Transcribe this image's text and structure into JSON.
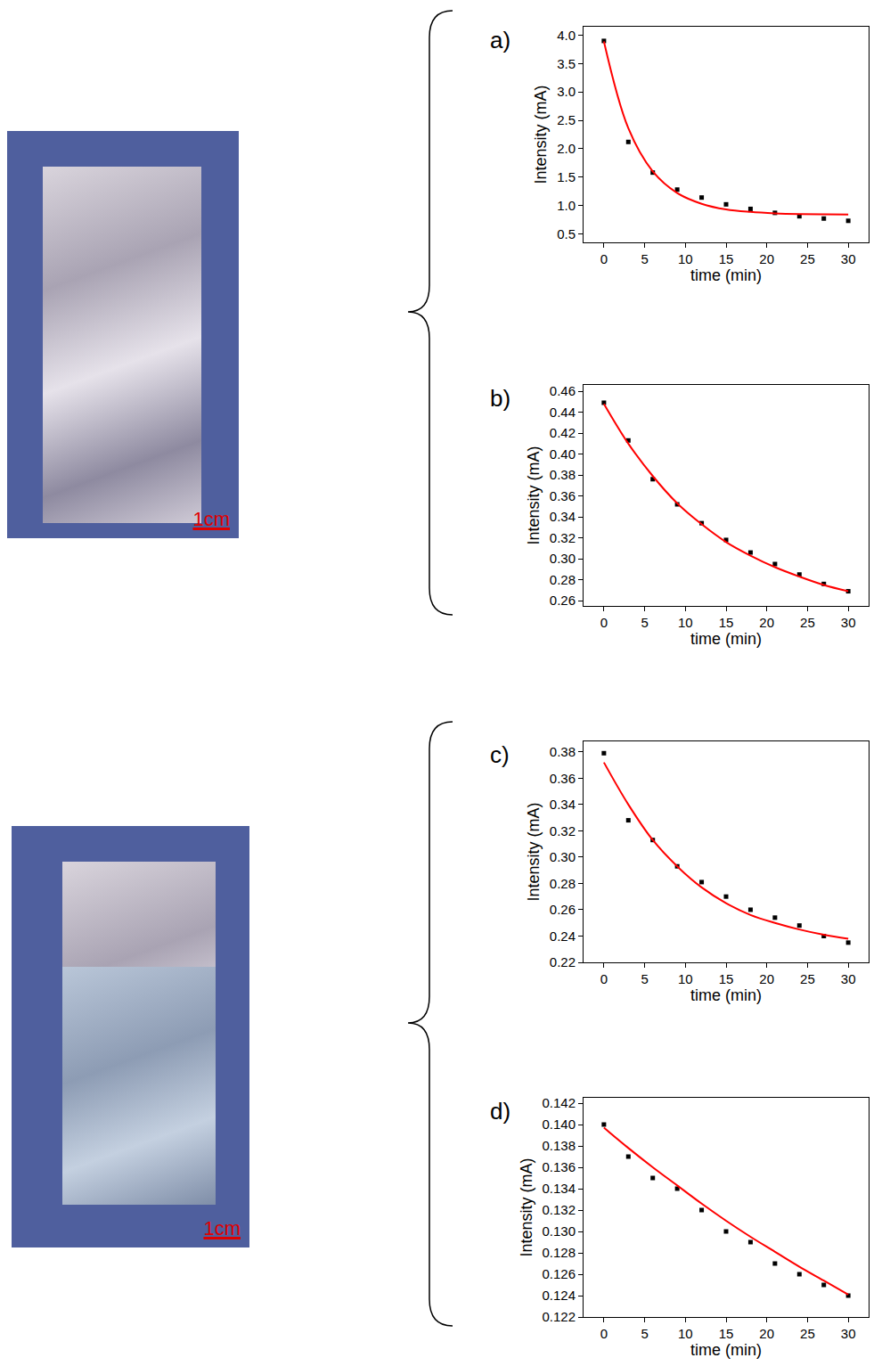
{
  "photos": [
    {
      "scale_bar": "1cm"
    },
    {
      "scale_bar": "1cm"
    }
  ],
  "chart_data": [
    {
      "type": "scatter",
      "label": "a)",
      "x_label": "time (min)",
      "y_label": "Intensity (mA)",
      "grid": false,
      "x": [
        0,
        3,
        6,
        9,
        12,
        15,
        18,
        21,
        24,
        27,
        30
      ],
      "xlim": [
        -2.5,
        32.5
      ],
      "xticks": [
        0,
        5,
        10,
        15,
        20,
        25,
        30
      ],
      "ylim": [
        0.35,
        4.15
      ],
      "yticks": [
        0.5,
        {
          "value": 1,
          "label": "1.0"
        },
        1.5,
        {
          "value": 2,
          "label": "2.0"
        },
        2.5,
        {
          "value": 3,
          "label": "3.0"
        },
        3.5,
        {
          "value": 4,
          "label": "4.0"
        }
      ],
      "series": [
        {
          "type": "scatter",
          "marker": "square",
          "color": "#000000",
          "values": [
            3.9,
            2.12,
            1.58,
            1.28,
            1.14,
            1.02,
            0.94,
            0.87,
            0.81,
            0.77,
            0.73
          ]
        },
        {
          "type": "line",
          "line_style": "solid",
          "color": "#ff0000",
          "values": [
            3.89,
            2.36,
            1.6,
            1.22,
            1.03,
            0.93,
            0.886,
            0.862,
            0.85,
            0.845,
            0.842
          ]
        }
      ]
    },
    {
      "type": "scatter",
      "label": "b)",
      "x_label": "time (min)",
      "y_label": "Intensity (mA)",
      "grid": false,
      "x": [
        0,
        3,
        6,
        9,
        12,
        15,
        18,
        21,
        24,
        27,
        30
      ],
      "xlim": [
        -2.5,
        32.5
      ],
      "xticks": [
        0,
        5,
        10,
        15,
        20,
        25,
        30
      ],
      "ylim": [
        0.255,
        0.466
      ],
      "yticks": [
        0.26,
        0.28,
        {
          "value": 0.3,
          "label": "0.30"
        },
        0.32,
        0.34,
        0.36,
        0.38,
        {
          "value": 0.4,
          "label": "0.40"
        },
        0.42,
        0.44,
        0.46
      ],
      "series": [
        {
          "type": "scatter",
          "marker": "square",
          "color": "#000000",
          "values": [
            0.449,
            0.413,
            0.376,
            0.352,
            0.334,
            0.318,
            0.306,
            0.295,
            0.285,
            0.276,
            0.269
          ]
        },
        {
          "type": "line",
          "line_style": "solid",
          "color": "#ff0000",
          "values": [
            0.448,
            0.41,
            0.379,
            0.353,
            0.333,
            0.316,
            0.303,
            0.292,
            0.283,
            0.275,
            0.269
          ]
        }
      ]
    },
    {
      "type": "scatter",
      "label": "c)",
      "x_label": "time (min)",
      "y_label": "Intensity (mA)",
      "grid": false,
      "x": [
        0,
        3,
        6,
        9,
        12,
        15,
        18,
        21,
        24,
        27,
        30
      ],
      "xlim": [
        -2.5,
        32.5
      ],
      "xticks": [
        0,
        5,
        10,
        15,
        20,
        25,
        30
      ],
      "ylim": [
        0.22,
        0.388
      ],
      "yticks": [
        0.22,
        0.24,
        0.26,
        0.28,
        {
          "value": 0.3,
          "label": "0.30"
        },
        0.32,
        0.34,
        0.36,
        0.38
      ],
      "series": [
        {
          "type": "scatter",
          "marker": "square",
          "color": "#000000",
          "values": [
            0.379,
            0.328,
            0.313,
            0.293,
            0.281,
            0.27,
            0.26,
            0.254,
            0.248,
            0.24,
            0.235
          ]
        },
        {
          "type": "line",
          "line_style": "solid",
          "color": "#ff0000",
          "values": [
            0.372,
            0.34,
            0.313,
            0.293,
            0.277,
            0.265,
            0.256,
            0.25,
            0.245,
            0.241,
            0.238
          ]
        }
      ]
    },
    {
      "type": "scatter",
      "label": "d)",
      "x_label": "time (min)",
      "y_label": "Intensity (mA)",
      "grid": false,
      "x": [
        0,
        3,
        6,
        9,
        12,
        15,
        18,
        21,
        24,
        27,
        30
      ],
      "xlim": [
        -2.5,
        32.5
      ],
      "xticks": [
        0,
        5,
        10,
        15,
        20,
        25,
        30
      ],
      "ylim": [
        0.122,
        0.1425
      ],
      "yticks": [
        0.122,
        0.124,
        0.126,
        0.128,
        {
          "value": 0.13,
          "label": "0.130"
        },
        0.132,
        0.134,
        0.136,
        0.138,
        {
          "value": 0.14,
          "label": "0.140"
        },
        0.142
      ],
      "series": [
        {
          "type": "scatter",
          "marker": "square",
          "color": "#000000",
          "values": [
            0.14,
            0.137,
            0.135,
            0.134,
            0.132,
            0.13,
            0.129,
            0.127,
            0.126,
            0.125,
            0.124
          ]
        },
        {
          "type": "line",
          "line_style": "solid",
          "color": "#ff0000",
          "values": [
            0.1397,
            0.1378,
            0.136,
            0.1343,
            0.1326,
            0.131,
            0.1295,
            0.1281,
            0.1267,
            0.1254,
            0.1241
          ]
        }
      ]
    }
  ]
}
